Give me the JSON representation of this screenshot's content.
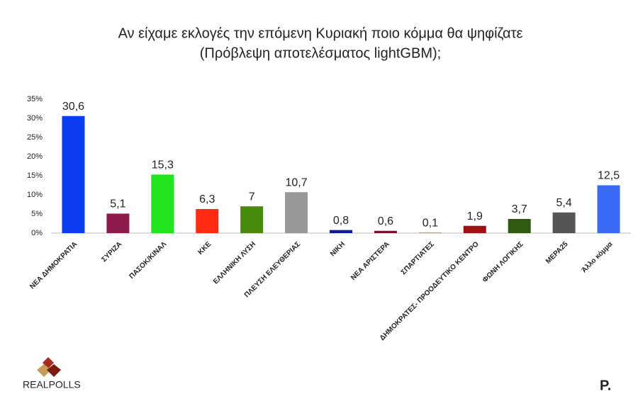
{
  "chart_data": {
    "type": "bar",
    "title": "Αν είχαμε εκλογές την επόμενη Κυριακή ποιο κόμμα θα ψηφίζατε",
    "subtitle": "(Πρόβλεψη αποτελέσματος lightGBM);",
    "categories": [
      "ΝΕΑ ΔΗΜΟΚΡΑΤΙΑ",
      "ΣΥΡΙΖΑ",
      "ΠΑΣΟΚ/ΚΙΝΑΛ",
      "ΚΚΕ",
      "ΕΛΛΗΝΙΚΗ ΛΥΣΗ",
      "ΠΛΕΥΣΗ ΕΛΕΥΘΕΡΙΑΣ",
      "ΝΙΚΗ",
      "ΝΕΑ ΑΡΙΣΤΕΡΑ",
      "ΣΠΑΡΤΙΑΤΕΣ",
      "ΔΗΜΟΚΡΑΤΕΣ- ΠΡΟΟΔΕΥΤΙΚΟ ΚΕΝΤΡΟ",
      "ΦΩΝΗ ΛΟΓΙΚΗΣ",
      "ΜΕΡΑ25",
      "Άλλο κόμμα"
    ],
    "values": [
      30.6,
      5.1,
      15.3,
      6.3,
      7,
      10.7,
      0.8,
      0.6,
      0.1,
      1.9,
      3.7,
      5.4,
      12.5
    ],
    "value_labels": [
      "30,6",
      "5,1",
      "15,3",
      "6,3",
      "7",
      "10,7",
      "0,8",
      "0,6",
      "0,1",
      "1,9",
      "3,7",
      "5,4",
      "12,5"
    ],
    "colors": [
      "#0a3cf0",
      "#8e1a4e",
      "#22e41c",
      "#ff2a10",
      "#4a8a0a",
      "#999999",
      "#0a1a9a",
      "#7a1030",
      "#8b4513",
      "#a01010",
      "#2e5a10",
      "#555555",
      "#3a6af5"
    ],
    "ylim": [
      0,
      35
    ],
    "yticks": [
      {
        "value": 0,
        "label": "0%"
      },
      {
        "value": 5,
        "label": "5%"
      },
      {
        "value": 10,
        "label": "10%"
      },
      {
        "value": 15,
        "label": "15%"
      },
      {
        "value": 20,
        "label": "20%"
      },
      {
        "value": 25,
        "label": "25%"
      },
      {
        "value": 30,
        "label": "30%"
      },
      {
        "value": 35,
        "label": "35%"
      }
    ],
    "grid": false
  },
  "logos": {
    "left": "REALPOLLS",
    "right": "P."
  }
}
